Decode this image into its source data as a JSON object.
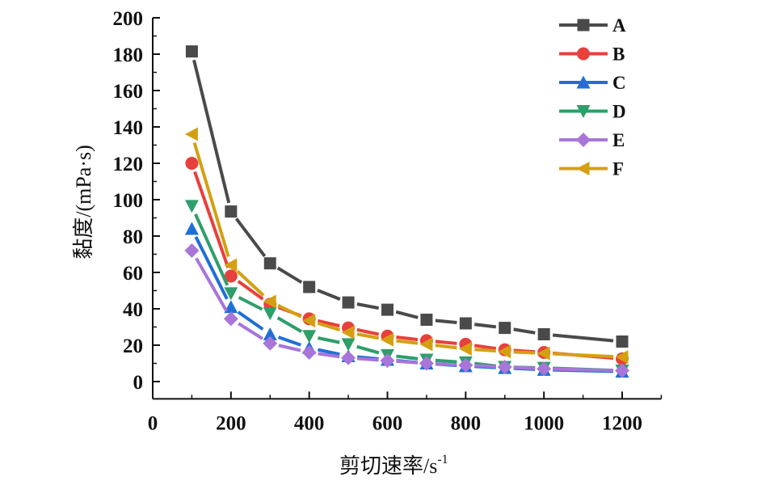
{
  "chart_data": {
    "type": "line",
    "title": "",
    "xlabel": "剪切速率/s",
    "xlabel_superscript": "-1",
    "ylabel": "黏度/(mPa·s)",
    "xlim": [
      0,
      1300
    ],
    "ylim": [
      -9.5,
      200
    ],
    "xticks": [
      0,
      200,
      400,
      600,
      800,
      1000,
      1200
    ],
    "xtick_labels": [
      "0",
      "200",
      "400",
      "600",
      "800",
      "1000",
      "1200"
    ],
    "yticks": [
      0,
      20,
      40,
      60,
      80,
      100,
      120,
      140,
      160,
      180,
      200
    ],
    "ytick_labels": [
      "0",
      "20",
      "40",
      "60",
      "80",
      "100",
      "120",
      "140",
      "160",
      "180",
      "200"
    ],
    "grid": false,
    "legend_position": "top-right",
    "x": [
      100,
      200,
      300,
      400,
      500,
      600,
      700,
      800,
      900,
      1000,
      1200
    ],
    "series": [
      {
        "name": "A",
        "color": "#4a4a4a",
        "marker": "square",
        "values": [
          181.5,
          93.5,
          65,
          52,
          43.5,
          39.5,
          34,
          32,
          29.5,
          26,
          22
        ]
      },
      {
        "name": "B",
        "color": "#e8403c",
        "marker": "circle",
        "values": [
          120,
          58,
          42.5,
          34.5,
          29.5,
          25,
          22.5,
          20.5,
          17.5,
          16,
          12.5
        ]
      },
      {
        "name": "C",
        "color": "#1f6fd6",
        "marker": "triangle-up",
        "values": [
          84,
          41,
          26,
          18.5,
          14,
          12,
          10,
          8.5,
          7.5,
          6.5,
          5.5
        ]
      },
      {
        "name": "D",
        "color": "#2e9e6a",
        "marker": "triangle-down",
        "values": [
          96.5,
          48.5,
          37.5,
          25,
          20.5,
          14.5,
          12,
          10.5,
          8,
          7.5,
          6
        ]
      },
      {
        "name": "E",
        "color": "#a875d9",
        "marker": "diamond",
        "values": [
          72,
          34.5,
          21,
          16,
          13,
          11.5,
          10,
          9,
          8,
          7,
          6
        ]
      },
      {
        "name": "F",
        "color": "#d4a012",
        "marker": "triangle-left",
        "values": [
          136,
          64,
          44,
          33.5,
          27,
          23,
          20.5,
          18,
          16.5,
          15.5,
          13.5
        ]
      }
    ]
  }
}
